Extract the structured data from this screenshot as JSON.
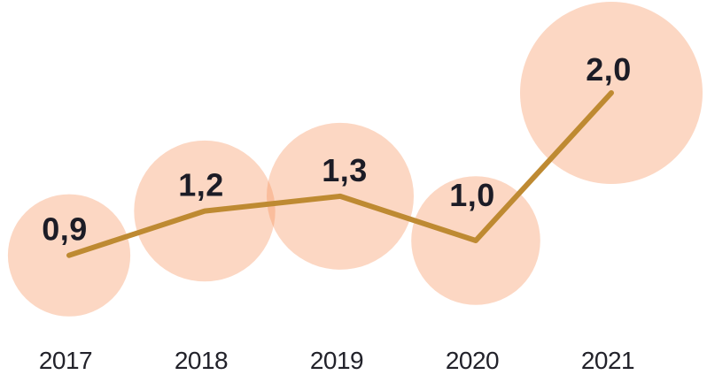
{
  "chart_data": {
    "type": "line",
    "variant": "bubble-line",
    "title": "",
    "xlabel": "",
    "ylabel": "",
    "categories": [
      "2017",
      "2018",
      "2019",
      "2020",
      "2021"
    ],
    "values": [
      0.9,
      1.2,
      1.3,
      1.0,
      2.0
    ],
    "value_labels": [
      "0,9",
      "1,2",
      "1,3",
      "1,0",
      "2,0"
    ],
    "decimal_separator": "comma",
    "ylim": [
      0.1,
      2.6
    ],
    "grid": false,
    "legend": false,
    "bubble_sizing": "area proportional to value",
    "colors": {
      "background": "#FFFFFF",
      "bubble_fill": "rgba(246,139,84,0.35)",
      "line": "#BE8A32",
      "value_text": "#1C1C26",
      "axis_text": "#22222A"
    }
  }
}
